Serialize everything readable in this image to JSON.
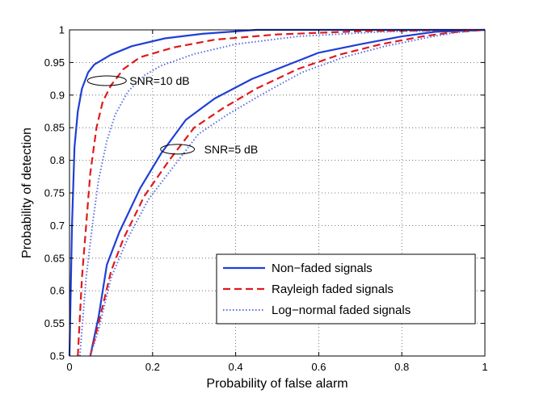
{
  "chart_data": {
    "type": "line",
    "title": "",
    "xlabel": "Probability of false alarm",
    "ylabel": "Probability of detection",
    "xlim": [
      0,
      1
    ],
    "ylim": [
      0.5,
      1
    ],
    "xticks": [
      0,
      0.2,
      0.4,
      0.6,
      0.8,
      1
    ],
    "xtick_labels": [
      "0",
      "0.2",
      "0.4",
      "0.6",
      "0.8",
      "1"
    ],
    "yticks": [
      0.5,
      0.55,
      0.6,
      0.65,
      0.7,
      0.75,
      0.8,
      0.85,
      0.9,
      0.95,
      1
    ],
    "ytick_labels": [
      "0.5",
      "0.55",
      "0.6",
      "0.65",
      "0.7",
      "0.75",
      "0.8",
      "0.85",
      "0.9",
      "0.95",
      "1"
    ],
    "grid": true,
    "legend_position": "bottom-right",
    "series": [
      {
        "name": "Non−faded signals",
        "snr": "SNR=10 dB",
        "color": "#1f3fd6",
        "style": "solid",
        "points": [
          [
            0.0,
            0.5
          ],
          [
            0.006,
            0.7
          ],
          [
            0.012,
            0.82
          ],
          [
            0.02,
            0.875
          ],
          [
            0.03,
            0.91
          ],
          [
            0.045,
            0.935
          ],
          [
            0.06,
            0.947
          ],
          [
            0.1,
            0.962
          ],
          [
            0.15,
            0.975
          ],
          [
            0.23,
            0.987
          ],
          [
            0.32,
            0.994
          ],
          [
            0.45,
            1.0
          ],
          [
            1.0,
            1.0
          ]
        ]
      },
      {
        "name": "Rayleigh faded signals",
        "snr": "SNR=10 dB",
        "color": "#e01a1a",
        "style": "dashed",
        "points": [
          [
            0.02,
            0.5
          ],
          [
            0.03,
            0.62
          ],
          [
            0.04,
            0.7
          ],
          [
            0.05,
            0.78
          ],
          [
            0.065,
            0.85
          ],
          [
            0.08,
            0.89
          ],
          [
            0.1,
            0.915
          ],
          [
            0.13,
            0.94
          ],
          [
            0.17,
            0.958
          ],
          [
            0.25,
            0.973
          ],
          [
            0.35,
            0.985
          ],
          [
            0.5,
            0.993
          ],
          [
            0.7,
            0.998
          ],
          [
            1.0,
            1.0
          ]
        ]
      },
      {
        "name": "Log−normal faded signals",
        "snr": "SNR=10 dB",
        "color": "#5a6ee0",
        "style": "dotted",
        "points": [
          [
            0.025,
            0.5
          ],
          [
            0.04,
            0.62
          ],
          [
            0.055,
            0.7
          ],
          [
            0.07,
            0.77
          ],
          [
            0.09,
            0.83
          ],
          [
            0.11,
            0.87
          ],
          [
            0.14,
            0.905
          ],
          [
            0.18,
            0.93
          ],
          [
            0.22,
            0.945
          ],
          [
            0.3,
            0.963
          ],
          [
            0.4,
            0.978
          ],
          [
            0.55,
            0.99
          ],
          [
            0.75,
            0.997
          ],
          [
            1.0,
            1.0
          ]
        ]
      },
      {
        "name": "Non−faded signals",
        "snr": "SNR=5 dB",
        "color": "#1f3fd6",
        "style": "solid",
        "points": [
          [
            0.05,
            0.5
          ],
          [
            0.07,
            0.56
          ],
          [
            0.09,
            0.64
          ],
          [
            0.12,
            0.69
          ],
          [
            0.17,
            0.757
          ],
          [
            0.22,
            0.81
          ],
          [
            0.28,
            0.862
          ],
          [
            0.35,
            0.895
          ],
          [
            0.44,
            0.925
          ],
          [
            0.5,
            0.94
          ],
          [
            0.6,
            0.965
          ],
          [
            0.7,
            0.978
          ],
          [
            0.8,
            0.99
          ],
          [
            0.88,
            0.997
          ],
          [
            1.0,
            1.0
          ]
        ]
      },
      {
        "name": "Rayleigh faded signals",
        "snr": "SNR=5 dB",
        "color": "#e01a1a",
        "style": "dashed",
        "points": [
          [
            0.05,
            0.5
          ],
          [
            0.07,
            0.55
          ],
          [
            0.1,
            0.63
          ],
          [
            0.13,
            0.68
          ],
          [
            0.18,
            0.745
          ],
          [
            0.24,
            0.8
          ],
          [
            0.3,
            0.85
          ],
          [
            0.37,
            0.88
          ],
          [
            0.45,
            0.91
          ],
          [
            0.55,
            0.94
          ],
          [
            0.65,
            0.962
          ],
          [
            0.75,
            0.978
          ],
          [
            0.85,
            0.99
          ],
          [
            0.92,
            0.996
          ],
          [
            1.0,
            1.0
          ]
        ]
      },
      {
        "name": "Log−normal faded signals",
        "snr": "SNR=5 dB",
        "color": "#5a6ee0",
        "style": "dotted",
        "points": [
          [
            0.05,
            0.5
          ],
          [
            0.07,
            0.54
          ],
          [
            0.1,
            0.62
          ],
          [
            0.14,
            0.68
          ],
          [
            0.19,
            0.74
          ],
          [
            0.25,
            0.79
          ],
          [
            0.31,
            0.84
          ],
          [
            0.38,
            0.87
          ],
          [
            0.46,
            0.9
          ],
          [
            0.56,
            0.935
          ],
          [
            0.66,
            0.958
          ],
          [
            0.76,
            0.975
          ],
          [
            0.86,
            0.988
          ],
          [
            0.93,
            0.996
          ],
          [
            1.0,
            1.0
          ]
        ]
      }
    ],
    "legend": [
      {
        "label": "Non−faded signals",
        "color": "#1f3fd6",
        "style": "solid"
      },
      {
        "label": "Rayleigh faded signals",
        "color": "#e01a1a",
        "style": "dashed"
      },
      {
        "label": "Log−normal faded signals",
        "color": "#5a6ee0",
        "style": "dotted"
      }
    ],
    "annotations": [
      {
        "text": "SNR=10 dB",
        "anchor_x": 0.09,
        "anchor_y": 0.922
      },
      {
        "text": "SNR=5 dB",
        "anchor_x": 0.26,
        "anchor_y": 0.817
      }
    ]
  }
}
